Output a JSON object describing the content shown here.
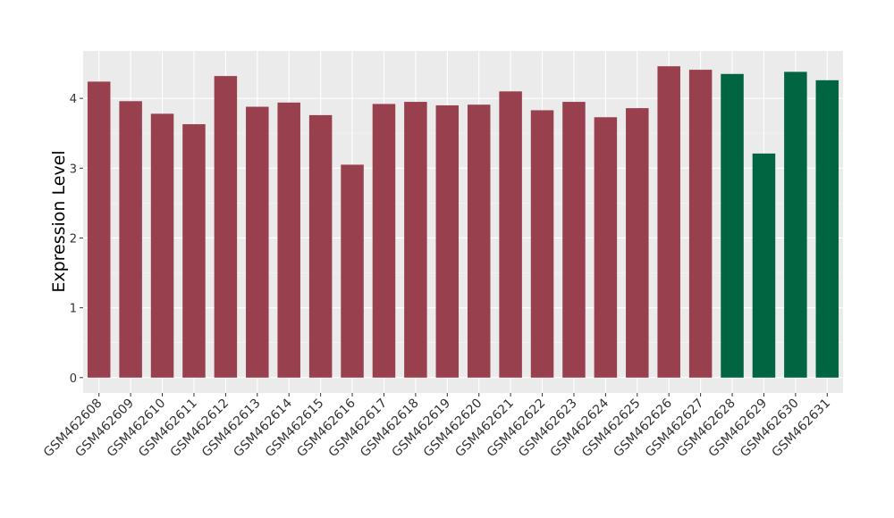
{
  "chart_data": {
    "type": "bar",
    "y_label": "Expression Level",
    "categories": [
      "GSM462608",
      "GSM462609",
      "GSM462610",
      "GSM462611",
      "GSM462612",
      "GSM462613",
      "GSM462614",
      "GSM462615",
      "GSM462616",
      "GSM462617",
      "GSM462618",
      "GSM462619",
      "GSM462620",
      "GSM462621",
      "GSM462622",
      "GSM462623",
      "GSM462624",
      "GSM462625",
      "GSM462626",
      "GSM462627",
      "GSM462628",
      "GSM462629",
      "GSM462630",
      "GSM462631"
    ],
    "values": [
      4.24,
      3.96,
      3.78,
      3.63,
      4.32,
      3.88,
      3.94,
      3.76,
      3.05,
      3.92,
      3.95,
      3.9,
      3.91,
      4.1,
      3.83,
      3.95,
      3.73,
      3.86,
      4.46,
      4.41,
      4.35,
      3.21,
      4.38,
      4.26
    ],
    "colors": [
      "#99404f",
      "#99404f",
      "#99404f",
      "#99404f",
      "#99404f",
      "#99404f",
      "#99404f",
      "#99404f",
      "#99404f",
      "#99404f",
      "#99404f",
      "#99404f",
      "#99404f",
      "#99404f",
      "#99404f",
      "#99404f",
      "#99404f",
      "#99404f",
      "#99404f",
      "#99404f",
      "#006540",
      "#006540",
      "#006540",
      "#006540"
    ],
    "ylim": [
      -0.22,
      4.68
    ],
    "yticks": [
      0,
      1,
      2,
      3,
      4
    ],
    "grid": true
  }
}
